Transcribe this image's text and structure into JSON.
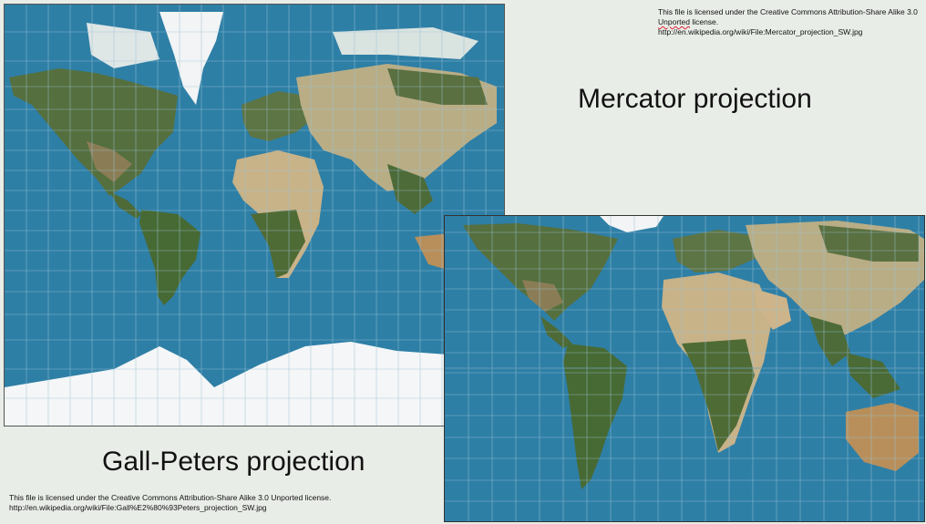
{
  "slide": {
    "mercator": {
      "title": "Mercator projection",
      "license_word1": "This file is licensed under the Creative Commons Attribution-Share Alike 3.0",
      "license_word2_underlined": "Unported",
      "license_word3": " license. http://en.wikipedia.org/wiki/File:Mercator_projection_SW.jpg"
    },
    "gall_peters": {
      "title": "Gall-Peters projection",
      "license_line1": "This file is licensed under the Creative Commons Attribution-Share Alike 3.0 Unported license.",
      "license_line2": "http://en.wikipedia.org/wiki/File:Gall%E2%80%93Peters_projection_SW.jpg"
    }
  },
  "colors": {
    "ocean": "#2e7fa6",
    "land_green": "#4f6b3a",
    "land_desert": "#c9b48b",
    "ice": "#f4f6f7",
    "graticule": "#9cc4d6",
    "background": "#e9ede8"
  }
}
